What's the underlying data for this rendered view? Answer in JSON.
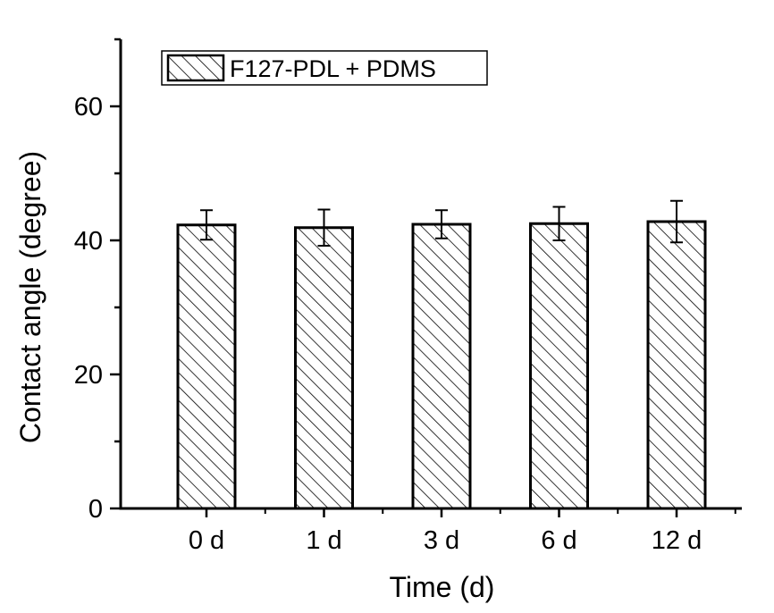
{
  "chart_data": {
    "type": "bar",
    "title": "",
    "xlabel": "Time (d)",
    "ylabel": "Contact angle (degree)",
    "categories": [
      "0 d",
      "1 d",
      "3 d",
      "6 d",
      "12 d"
    ],
    "series": [
      {
        "name": "F127-PDL + PDMS",
        "values": [
          42.3,
          41.9,
          42.4,
          42.5,
          42.8
        ],
        "errors": [
          2.2,
          2.7,
          2.1,
          2.5,
          3.1
        ]
      }
    ],
    "ylim": [
      0,
      70
    ],
    "yticks": [
      0,
      20,
      40,
      60
    ],
    "grid": false,
    "legend": "top-left",
    "bar_pattern": "diagonal-hatch",
    "colors": {
      "bar_fill": "#ffffff",
      "hatch": "#000000",
      "axis": "#000000"
    }
  }
}
